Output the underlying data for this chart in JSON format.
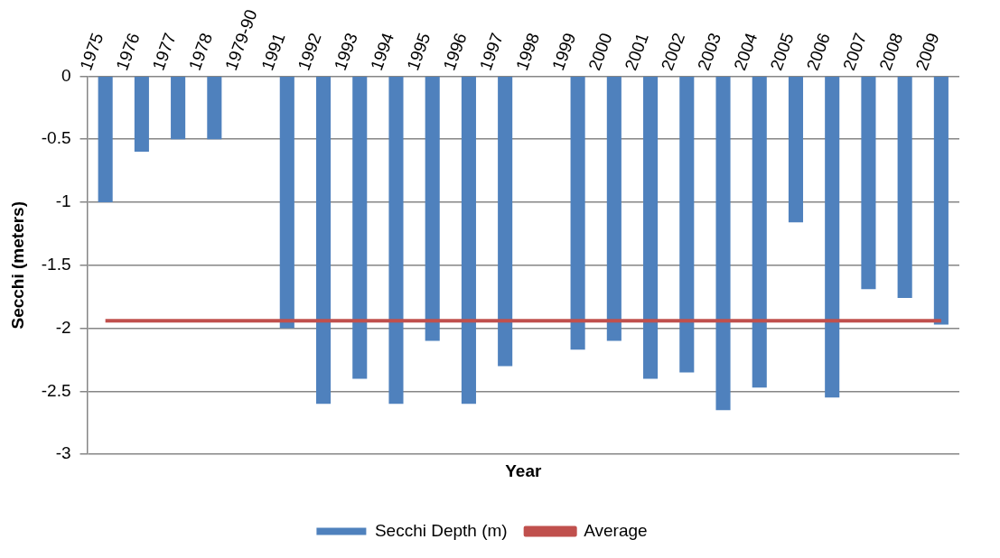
{
  "chart_data": {
    "type": "bar",
    "xlabel": "Year",
    "ylabel": "Secchi (meters)",
    "categories": [
      "1975",
      "1976",
      "1977",
      "1978",
      "1979-90",
      "1991",
      "1992",
      "1993",
      "1994",
      "1995",
      "1996",
      "1997",
      "1998",
      "1999",
      "2000",
      "2001",
      "2002",
      "2003",
      "2004",
      "2005",
      "2006",
      "2007",
      "2008",
      "2009"
    ],
    "series": [
      {
        "name": "Secchi Depth (m)",
        "color": "#4f81bd",
        "values": [
          -1.0,
          -0.6,
          -0.5,
          -0.5,
          null,
          -2.0,
          -2.6,
          -2.4,
          -2.6,
          -2.1,
          -2.6,
          -2.3,
          null,
          -2.17,
          -2.1,
          -2.4,
          -2.35,
          -2.65,
          -2.47,
          -1.16,
          -2.55,
          -1.69,
          -1.76,
          -1.97
        ]
      },
      {
        "name": "Average",
        "type": "line",
        "color": "#c0504d",
        "values": [
          -1.94,
          -1.94,
          -1.94,
          -1.94,
          -1.94,
          -1.94,
          -1.94,
          -1.94,
          -1.94,
          -1.94,
          -1.94,
          -1.94,
          -1.94,
          -1.94,
          -1.94,
          -1.94,
          -1.94,
          -1.94,
          -1.94,
          -1.94,
          -1.94,
          -1.94,
          -1.94,
          -1.94
        ]
      }
    ],
    "ylim": [
      -3,
      0
    ],
    "yticks": [
      -3,
      -2.5,
      -2,
      -1.5,
      -1,
      -0.5,
      0
    ],
    "grid": "y",
    "legend": "bottom",
    "marker": "none"
  }
}
